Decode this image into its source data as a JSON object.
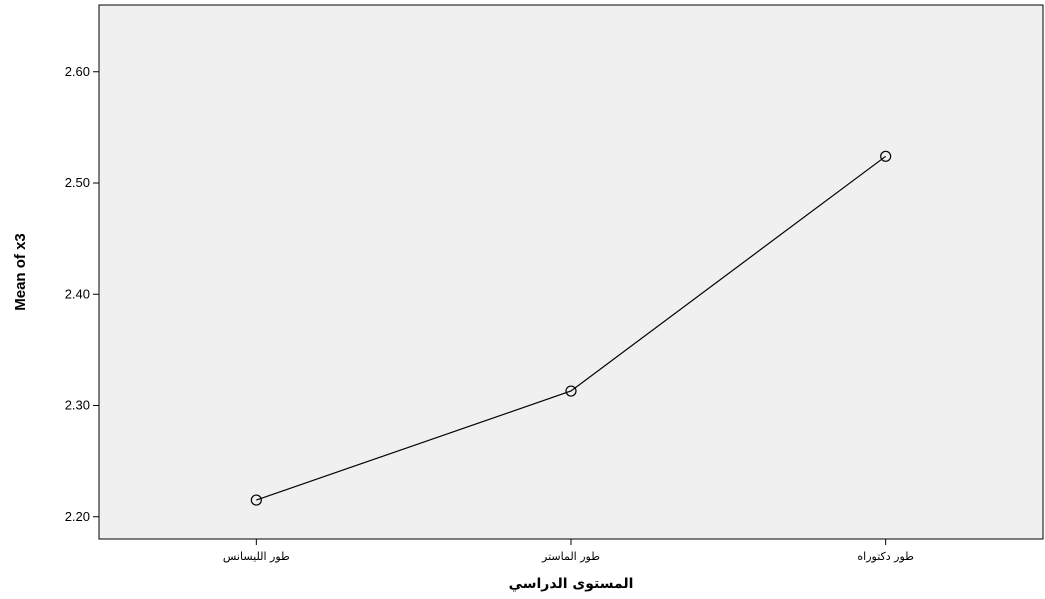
{
  "chart_data": {
    "type": "line",
    "categories": [
      "طور الليسانس",
      "طور الماستر",
      "طور دكتوراه"
    ],
    "values": [
      2.215,
      2.313,
      2.524
    ],
    "xlabel": "المستوى الدراسي",
    "ylabel": "Mean of x3",
    "ylim": [
      2.18,
      2.66
    ],
    "yticks": [
      2.2,
      2.3,
      2.4,
      2.5,
      2.6
    ],
    "ytick_labels": [
      "2.20",
      "2.30",
      "2.40",
      "2.50",
      "2.60"
    ],
    "grid": false,
    "marker": "open-circle",
    "colors": {
      "plot_background": "#f0f0f0",
      "line": "#000000"
    }
  }
}
